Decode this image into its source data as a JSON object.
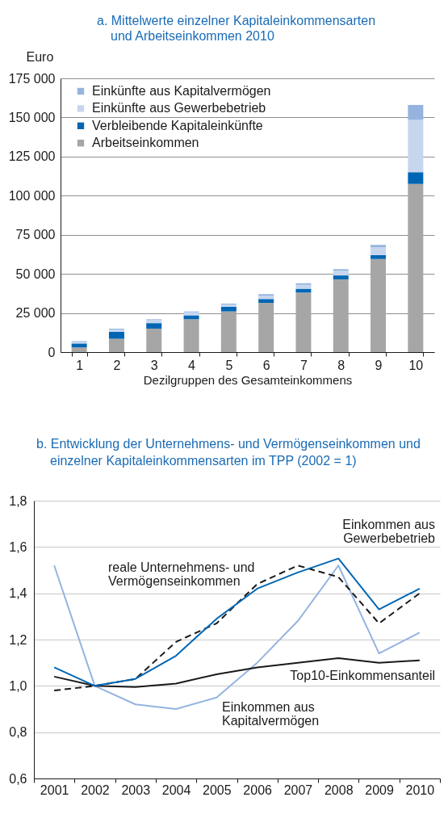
{
  "chart_data": [
    {
      "type": "bar",
      "title": "a. Mittelwerte einzelner Kapitaleinkommensarten und Arbeitseinkommen 2010",
      "xlabel": "Dezilgruppen des Gesamteinkommens",
      "ylabel": "Euro",
      "categories": [
        "1",
        "2",
        "3",
        "4",
        "5",
        "6",
        "7",
        "8",
        "9",
        "10"
      ],
      "stacked": true,
      "series": [
        {
          "name": "Arbeitseinkommen",
          "color": "#a6a6a6",
          "values": [
            3000,
            8500,
            15000,
            21000,
            26000,
            31500,
            38000,
            46500,
            59500,
            107500
          ]
        },
        {
          "name": "Verbleibende Kapitaleinkünfte",
          "color": "#0066b3",
          "values": [
            2500,
            4500,
            3500,
            2500,
            3000,
            2500,
            2500,
            2500,
            2500,
            7500
          ]
        },
        {
          "name": "Einkünfte aus Gewerbebetrieb",
          "color": "#c6d6ef",
          "values": [
            1000,
            1500,
            2000,
            2000,
            1500,
            2000,
            2500,
            3000,
            5000,
            33500
          ]
        },
        {
          "name": "Einkünfte aus Kapitalvermögen",
          "color": "#95b3de",
          "values": [
            500,
            500,
            500,
            500,
            500,
            1000,
            1000,
            1000,
            1500,
            9500
          ]
        }
      ],
      "ylim": [
        0,
        175000
      ],
      "yticks": [
        0,
        {
          "value": 25000,
          "label": "25 000"
        },
        {
          "value": 50000,
          "label": "50 000"
        },
        {
          "value": 75000,
          "label": "75 000"
        },
        {
          "value": 100000,
          "label": "100 000"
        },
        {
          "value": 125000,
          "label": "125 000"
        },
        {
          "value": 150000,
          "label": "150 000"
        },
        {
          "value": 175000,
          "label": "175 000"
        }
      ],
      "grid": "y",
      "legend": "top left"
    },
    {
      "type": "line",
      "title": "b. Entwicklung der Unternehmens- und Vermögenseinkommen und einzelner Kapitaleinkommensarten im TPP (2002 = 1)",
      "categories": [
        "2001",
        "2002",
        "2003",
        "2004",
        "2005",
        "2006",
        "2007",
        "2008",
        "2009",
        "2010"
      ],
      "series": [
        {
          "name": "Einkommen aus Kapitalvermögen",
          "color": "#94b4e0",
          "values": [
            1.52,
            1.0,
            0.92,
            0.9,
            0.95,
            1.1,
            1.28,
            1.52,
            1.14,
            1.23
          ]
        },
        {
          "name": "Top10-Einkommensanteil",
          "color": "#1a1a1a",
          "values": [
            1.04,
            1.0,
            0.995,
            1.01,
            1.05,
            1.08,
            1.1,
            1.12,
            1.1,
            1.11
          ]
        },
        {
          "name": "reale Unternehmens- und Vermögenseinkommen",
          "color": "#1a1a1a",
          "line_style": "dashed",
          "values": [
            0.98,
            1.0,
            1.03,
            1.19,
            1.27,
            1.44,
            1.52,
            1.47,
            1.27,
            1.4
          ]
        },
        {
          "name": "Einkommen aus Gewerbebetrieb",
          "color": "#0066b3",
          "values": [
            1.08,
            1.0,
            1.03,
            1.13,
            1.29,
            1.42,
            1.49,
            1.55,
            1.33,
            1.42
          ]
        }
      ],
      "ylim": [
        0.6,
        1.8
      ],
      "yticks": [
        {
          "value": 0.6,
          "label": "0,6"
        },
        {
          "value": 0.8,
          "label": "0,8"
        },
        {
          "value": 1.0,
          "label": "1,0"
        },
        {
          "value": 1.2,
          "label": "1,2"
        },
        {
          "value": 1.4,
          "label": "1,4"
        },
        {
          "value": 1.6,
          "label": "1,6"
        },
        {
          "value": 1.8,
          "label": "1,8"
        }
      ],
      "grid": "y",
      "line_style": "solid"
    }
  ]
}
